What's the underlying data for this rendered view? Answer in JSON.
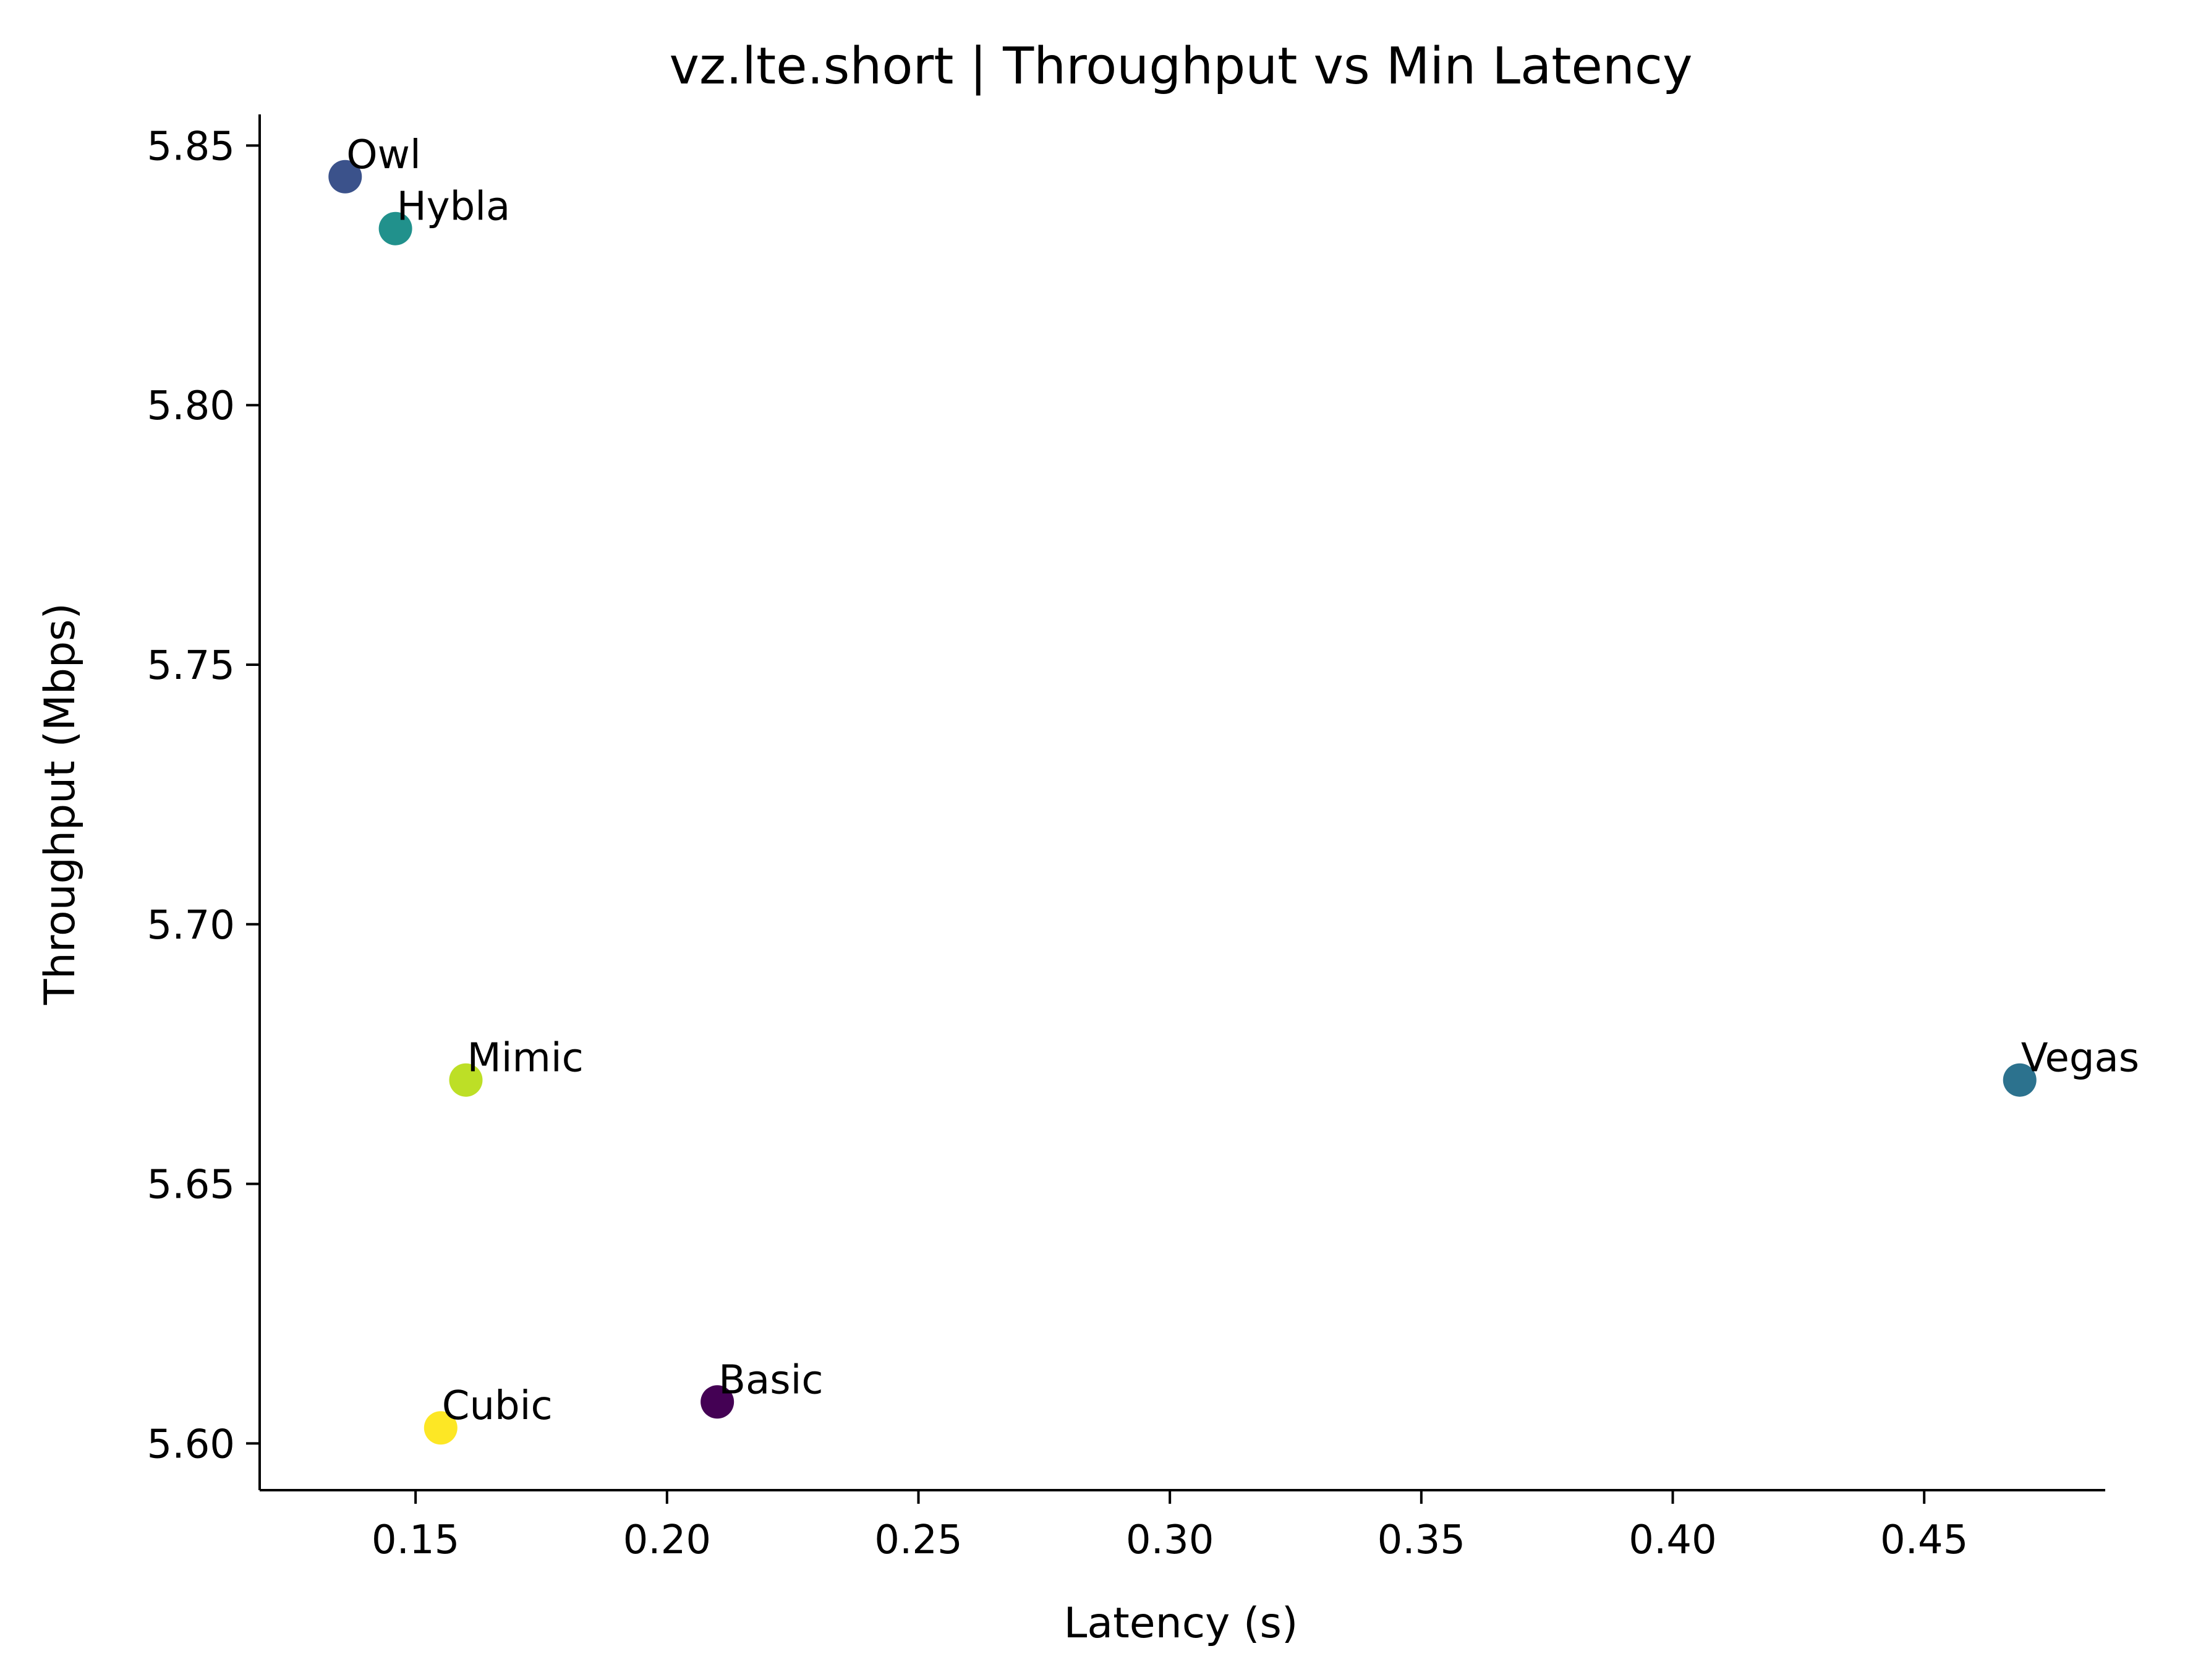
{
  "chart_data": {
    "type": "scatter",
    "title": "vz.lte.short | Throughput vs Min Latency",
    "xlabel": "Latency (s)",
    "ylabel": "Throughput (Mbps)",
    "xlim": [
      0.119,
      0.486
    ],
    "ylim": [
      5.591,
      5.856
    ],
    "xticks": [
      0.15,
      0.2,
      0.25,
      0.3,
      0.35,
      0.4,
      0.45
    ],
    "xtick_labels": [
      "0.15",
      "0.20",
      "0.25",
      "0.30",
      "0.35",
      "0.40",
      "0.45"
    ],
    "yticks": [
      5.6,
      5.65,
      5.7,
      5.75,
      5.8,
      5.85
    ],
    "ytick_labels": [
      "5.60",
      "5.65",
      "5.70",
      "5.75",
      "5.80",
      "5.85"
    ],
    "grid": false,
    "points": [
      {
        "label": "Owl",
        "x": 0.136,
        "y": 5.844,
        "color": "#3b528b"
      },
      {
        "label": "Hybla",
        "x": 0.146,
        "y": 5.834,
        "color": "#21918c"
      },
      {
        "label": "Mimic",
        "x": 0.16,
        "y": 5.67,
        "color": "#bddf26"
      },
      {
        "label": "Vegas",
        "x": 0.469,
        "y": 5.67,
        "color": "#2c728e"
      },
      {
        "label": "Basic",
        "x": 0.21,
        "y": 5.608,
        "color": "#440154"
      },
      {
        "label": "Cubic",
        "x": 0.155,
        "y": 5.603,
        "color": "#fde725"
      }
    ]
  }
}
